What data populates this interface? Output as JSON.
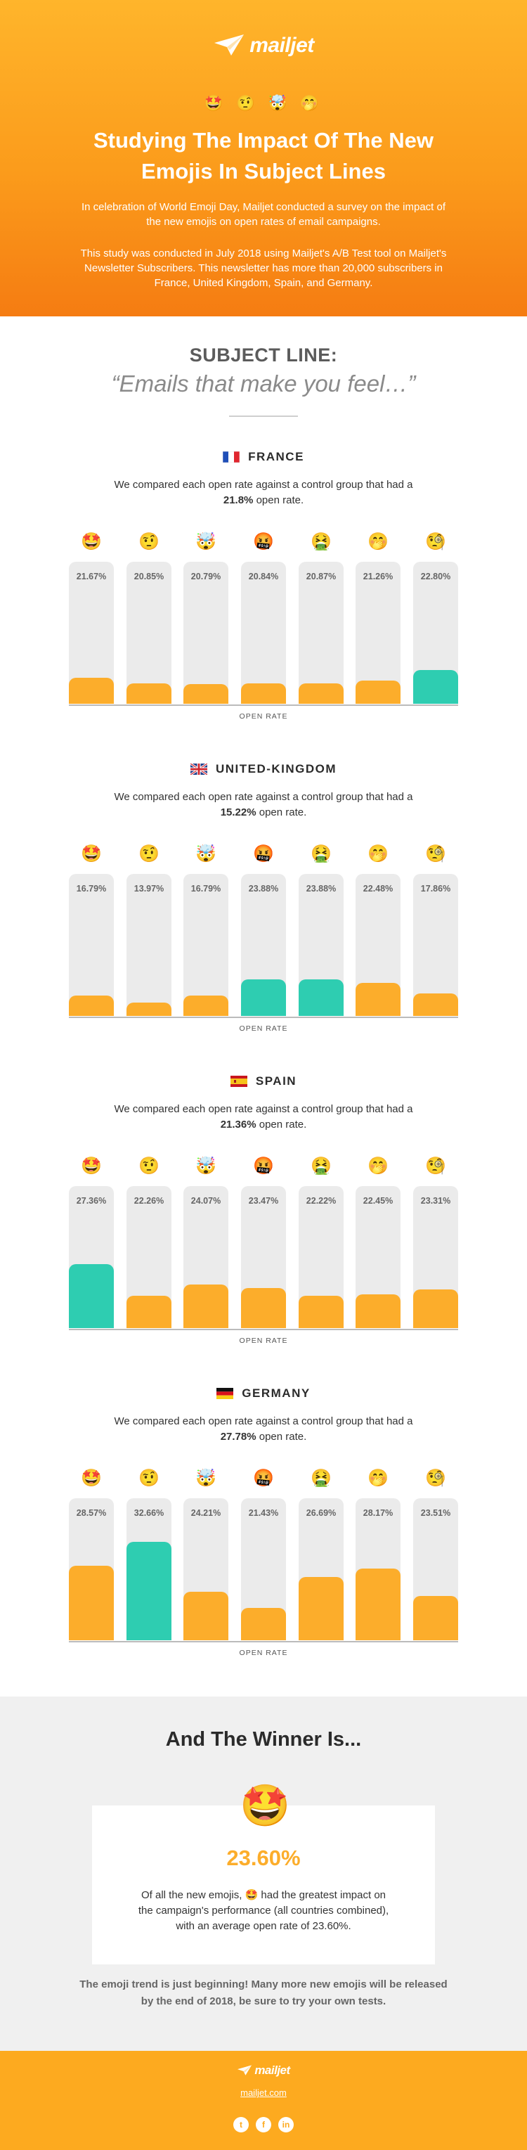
{
  "brand": {
    "name": "mailjet",
    "accent": "#fcad2b",
    "best": "#2ecdb1"
  },
  "hero": {
    "emojis": "🤩 🤨 🤯 🤭",
    "title": "Studying The Impact Of The New Emojis In Subject Lines",
    "intro": "In celebration of World Emoji Day, Mailjet conducted a survey on the impact of the new emojis on open rates of email campaigns.",
    "method": "This study was conducted in July 2018 using Mailjet's A/B Test tool on Mailjet's Newsletter Subscribers. This newsletter has more than 20,000 subscribers in France, United Kingdom, Spain, and Germany."
  },
  "subject": {
    "label": "SUBJECT LINE:",
    "quote": "“Emails that make you feel…”"
  },
  "chart_data": [
    {
      "type": "bar",
      "title": "FRANCE",
      "flag": "france",
      "desc_prefix": "We compared each open rate against a control group that had a ",
      "control": "21.8%",
      "desc_suffix": " open rate.",
      "categories": [
        "🤩",
        "🤨",
        "🤯",
        "🤬",
        "🤮",
        "🤭",
        "🧐"
      ],
      "values": [
        21.67,
        20.85,
        20.79,
        20.84,
        20.87,
        21.26,
        22.8
      ],
      "labels": [
        "21.67%",
        "20.85%",
        "20.79%",
        "20.84%",
        "20.87%",
        "21.26%",
        "22.80%"
      ],
      "highlight": [
        6
      ],
      "xlabel": "OPEN RATE",
      "ylabel": "",
      "ylim": [
        18,
        38
      ]
    },
    {
      "type": "bar",
      "title": "UNITED-KINGDOM",
      "flag": "uk",
      "desc_prefix": "We compared each open rate against a control group that had a ",
      "control": "15.22%",
      "desc_suffix": " open rate.",
      "categories": [
        "🤩",
        "🤨",
        "🤯",
        "🤬",
        "🤮",
        "🤭",
        "🧐"
      ],
      "values": [
        16.79,
        13.97,
        16.79,
        23.88,
        23.88,
        22.48,
        17.86
      ],
      "labels": [
        "16.79%",
        "13.97%",
        "16.79%",
        "23.88%",
        "23.88%",
        "22.48%",
        "17.86%"
      ],
      "highlight": [
        3,
        4
      ],
      "xlabel": "OPEN RATE",
      "ylabel": "",
      "ylim": [
        8,
        70
      ]
    },
    {
      "type": "bar",
      "title": "SPAIN",
      "flag": "spain",
      "desc_prefix": "We compared each open rate against a control group that had a ",
      "control": "21.36%",
      "desc_suffix": " open rate.",
      "categories": [
        "🤩",
        "🤨",
        "🤯",
        "🤬",
        "🤮",
        "🤭",
        "🧐"
      ],
      "values": [
        27.36,
        22.26,
        24.07,
        23.47,
        22.22,
        22.45,
        23.31
      ],
      "labels": [
        "27.36%",
        "22.26%",
        "24.07%",
        "23.47%",
        "22.22%",
        "22.45%",
        "23.31%"
      ],
      "highlight": [
        0
      ],
      "xlabel": "OPEN RATE",
      "ylabel": "",
      "ylim": [
        17,
        40
      ]
    },
    {
      "type": "bar",
      "title": "GERMANY",
      "flag": "germany",
      "desc_prefix": "We compared each open rate against a control group that had a ",
      "control": "27.78%",
      "desc_suffix": " open rate.",
      "categories": [
        "🤩",
        "🤨",
        "🤯",
        "🤬",
        "🤮",
        "🤭",
        "🧐"
      ],
      "values": [
        28.57,
        32.66,
        24.21,
        21.43,
        26.69,
        28.17,
        23.51
      ],
      "labels": [
        "28.57%",
        "32.66%",
        "24.21%",
        "21.43%",
        "26.69%",
        "28.17%",
        "23.51%"
      ],
      "highlight": [
        1
      ],
      "xlabel": "OPEN RATE",
      "ylabel": "",
      "ylim": [
        16,
        40
      ]
    }
  ],
  "winner": {
    "title": "And The Winner Is...",
    "emoji": "🤩",
    "value": "23.60%",
    "text_before": "Of all the new emojis, ",
    "text_after": " had the greatest impact on the campaign's performance (all countries combined), with an average open rate of 23.60%.",
    "footnote": "The emoji trend is just beginning! Many more new emojis will be released by the end of 2018, be sure to try your own tests."
  },
  "footer": {
    "logo": "mailjet",
    "link": "mailjet.com",
    "social": [
      "twitter-icon",
      "facebook-icon",
      "linkedin-icon"
    ]
  }
}
